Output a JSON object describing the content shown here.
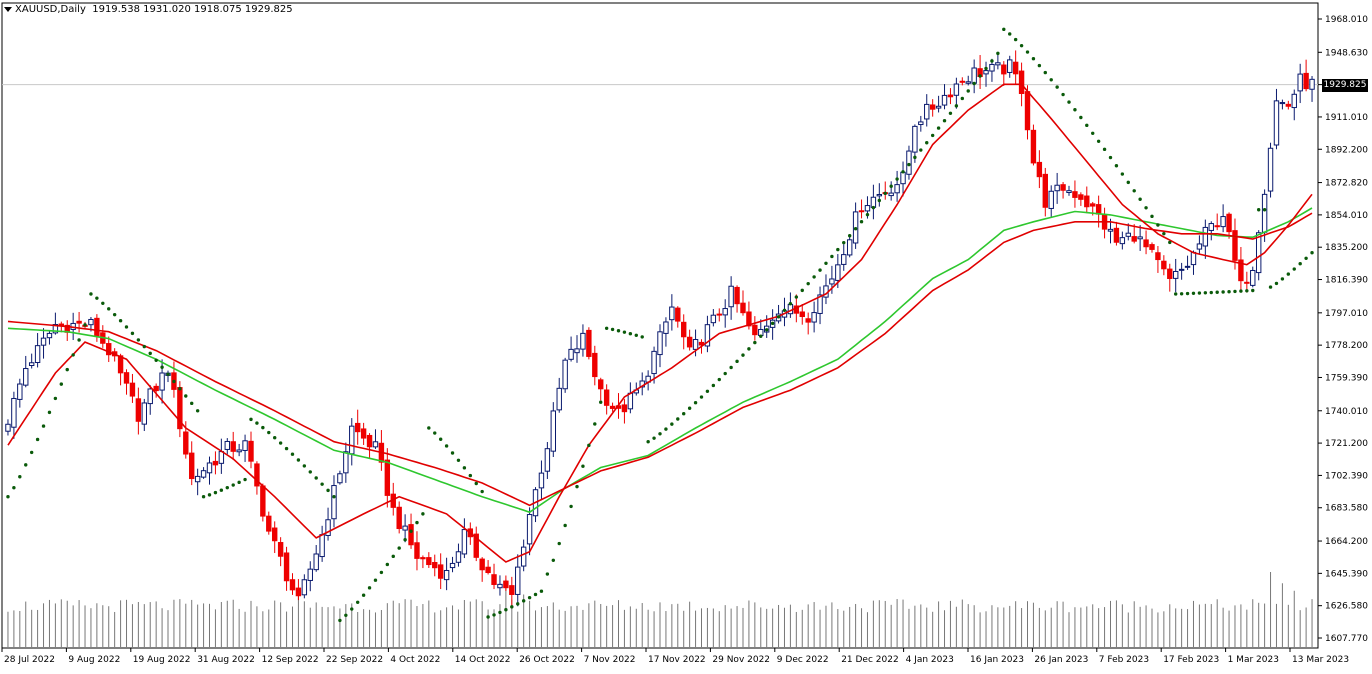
{
  "header": {
    "symbol": "XAUUSD,Daily",
    "ohlc": "1919.538 1931.020 1918.075 1929.825"
  },
  "current_price_label": "1929.825",
  "colors": {
    "background": "#ffffff",
    "bull_candle_body": "#ffffff",
    "bull_candle_border": "#0a1a6e",
    "bear_candle": "#ee0000",
    "ma_fast": "#e00000",
    "ma_slow_red": "#e00000",
    "ma_slow_green": "#2ec72e",
    "psar": "#0a5a0a",
    "volume": "#777777",
    "axis": "#000000",
    "grid_price_line": "#c8c8c8"
  },
  "chart_data": {
    "type": "candlestick",
    "symbol": "XAUUSD",
    "timeframe": "Daily",
    "ylim": [
      1607.77,
      1968.01
    ],
    "price_ticks": [
      "1968.010",
      "1948.630",
      "1929.825",
      "1911.010",
      "1892.200",
      "1872.820",
      "1854.010",
      "1835.200",
      "1816.390",
      "1797.010",
      "1778.200",
      "1759.390",
      "1740.010",
      "1721.200",
      "1702.390",
      "1683.580",
      "1664.200",
      "1645.390",
      "1626.580",
      "1607.770"
    ],
    "time_labels": [
      "28 Jul 2022",
      "9 Aug 2022",
      "19 Aug 2022",
      "31 Aug 2022",
      "12 Sep 2022",
      "22 Sep 2022",
      "4 Oct 2022",
      "14 Oct 2022",
      "26 Oct 2022",
      "7 Nov 2022",
      "17 Nov 2022",
      "29 Nov 2022",
      "9 Dec 2022",
      "21 Dec 2022",
      "4 Jan 2023",
      "16 Jan 2023",
      "26 Jan 2023",
      "7 Feb 2023",
      "17 Feb 2023",
      "1 Mar 2023",
      "13 Mar 2023"
    ],
    "close_keypoints": [
      [
        0,
        1735
      ],
      [
        3,
        1765
      ],
      [
        8,
        1790
      ],
      [
        14,
        1790
      ],
      [
        17,
        1775
      ],
      [
        22,
        1738
      ],
      [
        27,
        1765
      ],
      [
        31,
        1700
      ],
      [
        37,
        1718
      ],
      [
        40,
        1720
      ],
      [
        44,
        1670
      ],
      [
        49,
        1628
      ],
      [
        53,
        1668
      ],
      [
        58,
        1730
      ],
      [
        62,
        1718
      ],
      [
        65,
        1682
      ],
      [
        69,
        1655
      ],
      [
        74,
        1645
      ],
      [
        77,
        1668
      ],
      [
        82,
        1640
      ],
      [
        85,
        1632
      ],
      [
        88,
        1680
      ],
      [
        91,
        1720
      ],
      [
        94,
        1768
      ],
      [
        97,
        1782
      ],
      [
        100,
        1752
      ],
      [
        103,
        1738
      ],
      [
        107,
        1755
      ],
      [
        112,
        1800
      ],
      [
        115,
        1773
      ],
      [
        119,
        1792
      ],
      [
        122,
        1808
      ],
      [
        126,
        1782
      ],
      [
        130,
        1800
      ],
      [
        135,
        1796
      ],
      [
        139,
        1818
      ],
      [
        144,
        1860
      ],
      [
        148,
        1868
      ],
      [
        151,
        1875
      ],
      [
        153,
        1908
      ],
      [
        157,
        1920
      ],
      [
        160,
        1930
      ],
      [
        163,
        1937
      ],
      [
        166,
        1938
      ],
      [
        169,
        1940
      ],
      [
        171,
        1928
      ],
      [
        173,
        1885
      ],
      [
        175,
        1862
      ],
      [
        178,
        1870
      ],
      [
        181,
        1865
      ],
      [
        184,
        1853
      ],
      [
        187,
        1838
      ],
      [
        190,
        1843
      ],
      [
        193,
        1830
      ],
      [
        196,
        1815
      ],
      [
        199,
        1825
      ],
      [
        202,
        1843
      ],
      [
        205,
        1855
      ],
      [
        208,
        1812
      ],
      [
        210,
        1825
      ],
      [
        212,
        1870
      ],
      [
        214,
        1920
      ],
      [
        216,
        1918
      ],
      [
        218,
        1932
      ],
      [
        220,
        1930
      ]
    ],
    "ma_fast_keypoints": [
      [
        0,
        1720
      ],
      [
        8,
        1762
      ],
      [
        13,
        1780
      ],
      [
        20,
        1770
      ],
      [
        30,
        1730
      ],
      [
        38,
        1712
      ],
      [
        45,
        1690
      ],
      [
        52,
        1666
      ],
      [
        60,
        1680
      ],
      [
        66,
        1690
      ],
      [
        74,
        1680
      ],
      [
        84,
        1652
      ],
      [
        88,
        1658
      ],
      [
        93,
        1690
      ],
      [
        98,
        1720
      ],
      [
        104,
        1748
      ],
      [
        112,
        1765
      ],
      [
        120,
        1785
      ],
      [
        130,
        1795
      ],
      [
        138,
        1808
      ],
      [
        144,
        1828
      ],
      [
        150,
        1860
      ],
      [
        156,
        1895
      ],
      [
        162,
        1915
      ],
      [
        168,
        1930
      ],
      [
        171,
        1930
      ],
      [
        176,
        1910
      ],
      [
        182,
        1885
      ],
      [
        188,
        1860
      ],
      [
        194,
        1843
      ],
      [
        200,
        1832
      ],
      [
        205,
        1828
      ],
      [
        209,
        1825
      ],
      [
        212,
        1832
      ],
      [
        216,
        1848
      ],
      [
        220,
        1866
      ]
    ],
    "ma_slow_red_keypoints": [
      [
        0,
        1792
      ],
      [
        10,
        1789
      ],
      [
        17,
        1786
      ],
      [
        25,
        1775
      ],
      [
        35,
        1757
      ],
      [
        45,
        1740
      ],
      [
        55,
        1722
      ],
      [
        64,
        1715
      ],
      [
        72,
        1707
      ],
      [
        80,
        1698
      ],
      [
        88,
        1685
      ],
      [
        94,
        1695
      ],
      [
        100,
        1705
      ],
      [
        108,
        1713
      ],
      [
        116,
        1727
      ],
      [
        124,
        1742
      ],
      [
        132,
        1752
      ],
      [
        140,
        1765
      ],
      [
        148,
        1785
      ],
      [
        156,
        1810
      ],
      [
        162,
        1822
      ],
      [
        168,
        1838
      ],
      [
        173,
        1845
      ],
      [
        180,
        1850
      ],
      [
        186,
        1850
      ],
      [
        192,
        1846
      ],
      [
        198,
        1843
      ],
      [
        204,
        1843
      ],
      [
        210,
        1840
      ],
      [
        216,
        1847
      ],
      [
        220,
        1855
      ]
    ],
    "ma_slow_green_keypoints": [
      [
        0,
        1788
      ],
      [
        10,
        1786
      ],
      [
        17,
        1782
      ],
      [
        25,
        1770
      ],
      [
        35,
        1752
      ],
      [
        45,
        1735
      ],
      [
        55,
        1717
      ],
      [
        64,
        1710
      ],
      [
        72,
        1700
      ],
      [
        80,
        1690
      ],
      [
        88,
        1681
      ],
      [
        94,
        1695
      ],
      [
        100,
        1707
      ],
      [
        108,
        1714
      ],
      [
        116,
        1730
      ],
      [
        124,
        1745
      ],
      [
        132,
        1757
      ],
      [
        140,
        1770
      ],
      [
        148,
        1792
      ],
      [
        156,
        1817
      ],
      [
        162,
        1828
      ],
      [
        168,
        1845
      ],
      [
        173,
        1850
      ],
      [
        180,
        1856
      ],
      [
        186,
        1854
      ],
      [
        192,
        1850
      ],
      [
        198,
        1846
      ],
      [
        204,
        1842
      ],
      [
        210,
        1841
      ],
      [
        216,
        1850
      ],
      [
        220,
        1858
      ]
    ],
    "psar_segments": [
      {
        "from": 0,
        "to": 13,
        "side": "below",
        "start": 1690,
        "end": 1790
      },
      {
        "from": 14,
        "to": 32,
        "side": "above",
        "start": 1808,
        "end": 1740
      },
      {
        "from": 33,
        "to": 40,
        "side": "below",
        "start": 1690,
        "end": 1700
      },
      {
        "from": 41,
        "to": 55,
        "side": "above",
        "start": 1735,
        "end": 1690
      },
      {
        "from": 56,
        "to": 70,
        "side": "below",
        "start": 1618,
        "end": 1680
      },
      {
        "from": 71,
        "to": 80,
        "side": "above",
        "start": 1730,
        "end": 1693
      },
      {
        "from": 81,
        "to": 90,
        "side": "below",
        "start": 1620,
        "end": 1635
      },
      {
        "from": 91,
        "to": 100,
        "side": "below",
        "start": 1645,
        "end": 1745
      },
      {
        "from": 101,
        "to": 107,
        "side": "above",
        "start": 1788,
        "end": 1783
      },
      {
        "from": 108,
        "to": 167,
        "side": "below",
        "start": 1722,
        "end": 1948
      },
      {
        "from": 168,
        "to": 196,
        "side": "above",
        "start": 1962,
        "end": 1838
      },
      {
        "from": 197,
        "to": 210,
        "side": "below",
        "start": 1808,
        "end": 1810
      },
      {
        "from": 211,
        "to": 212,
        "side": "above",
        "start": 1857,
        "end": 1857
      },
      {
        "from": 213,
        "to": 220,
        "side": "below",
        "start": 1812,
        "end": 1832
      }
    ],
    "volume_profile": {
      "baseline": 0.55,
      "spikes": [
        [
          49,
          0.75
        ],
        [
          84,
          0.9
        ],
        [
          87,
          0.7
        ],
        [
          213,
          1.0
        ],
        [
          215,
          0.85
        ],
        [
          217,
          0.75
        ]
      ]
    },
    "bar_count": 221
  }
}
